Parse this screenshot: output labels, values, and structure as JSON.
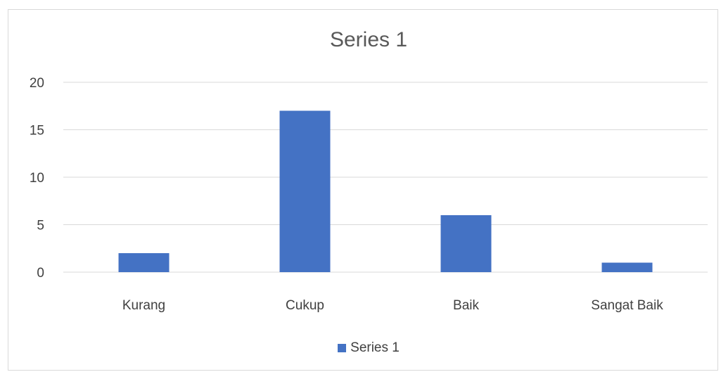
{
  "chart_data": {
    "type": "bar",
    "title": "Series 1",
    "categories": [
      "Kurang",
      "Cukup",
      "Baik",
      "Sangat Baik"
    ],
    "series": [
      {
        "name": "Series 1",
        "values": [
          2,
          17,
          6,
          1
        ],
        "color": "#4472c4"
      }
    ],
    "yticks": [
      "0",
      "5",
      "10",
      "15",
      "20"
    ],
    "ylim": [
      0,
      20
    ],
    "xlabel": "",
    "ylabel": "",
    "grid": true,
    "legend_position": "bottom"
  },
  "colors": {
    "bar": "#4472c4",
    "grid": "#d9d9d9",
    "text": "#404040",
    "title": "#595959"
  }
}
